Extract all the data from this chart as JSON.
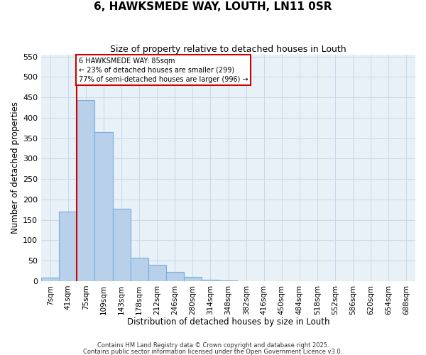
{
  "title": "6, HAWKSMEDE WAY, LOUTH, LN11 0SR",
  "subtitle": "Size of property relative to detached houses in Louth",
  "xlabel": "Distribution of detached houses by size in Louth",
  "ylabel": "Number of detached properties",
  "bar_labels": [
    "7sqm",
    "41sqm",
    "75sqm",
    "109sqm",
    "143sqm",
    "178sqm",
    "212sqm",
    "246sqm",
    "280sqm",
    "314sqm",
    "348sqm",
    "382sqm",
    "416sqm",
    "450sqm",
    "484sqm",
    "518sqm",
    "552sqm",
    "586sqm",
    "620sqm",
    "654sqm",
    "688sqm"
  ],
  "bar_values": [
    8,
    170,
    443,
    365,
    177,
    57,
    40,
    22,
    10,
    3,
    1,
    0,
    0,
    0,
    0,
    0,
    0,
    0,
    0,
    0,
    0
  ],
  "bar_color": "#b8d0ea",
  "bar_edge_color": "#7aaede",
  "grid_color": "#c8d8e8",
  "background_color": "#e8f0f8",
  "vline_color": "#cc0000",
  "annotation_text": "6 HAWKSMEDE WAY: 85sqm\n← 23% of detached houses are smaller (299)\n77% of semi-detached houses are larger (996) →",
  "annotation_box_color": "#ffffff",
  "annotation_box_edge": "#cc0000",
  "ylim": [
    0,
    555
  ],
  "yticks": [
    0,
    50,
    100,
    150,
    200,
    250,
    300,
    350,
    400,
    450,
    500,
    550
  ],
  "footnote1": "Contains HM Land Registry data © Crown copyright and database right 2025.",
  "footnote2": "Contains public sector information licensed under the Open Government Licence v3.0."
}
